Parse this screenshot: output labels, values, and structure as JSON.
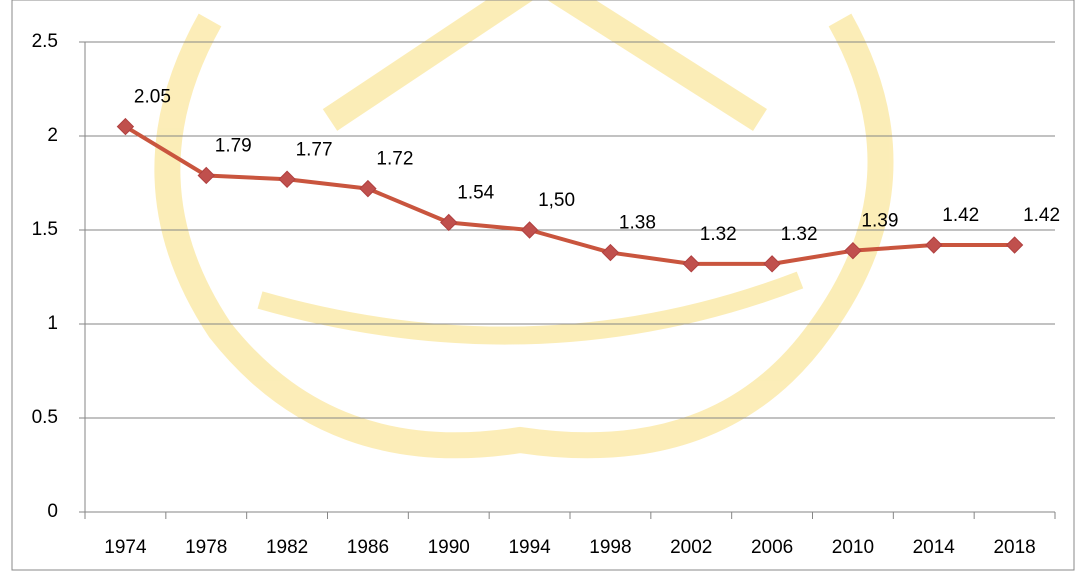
{
  "chart_data": {
    "type": "line",
    "categories": [
      "1974",
      "1978",
      "1982",
      "1986",
      "1990",
      "1994",
      "1998",
      "2002",
      "2006",
      "2010",
      "2014",
      "2018"
    ],
    "series": [
      {
        "color": "#c9553e",
        "values": [
          2.05,
          1.79,
          1.77,
          1.72,
          1.54,
          1.5,
          1.38,
          1.32,
          1.32,
          1.39,
          1.42,
          1.42
        ],
        "value_labels": [
          "2.05",
          "1.79",
          "1.77",
          "1.72",
          "1.54",
          "1,50",
          "1.38",
          "1.32",
          "1.32",
          "1.39",
          "1.42",
          "1.42"
        ]
      }
    ],
    "ylim": [
      0,
      2.5
    ],
    "yticks": [
      0,
      0.5,
      1,
      1.5,
      2,
      2.5
    ],
    "grid": true
  }
}
